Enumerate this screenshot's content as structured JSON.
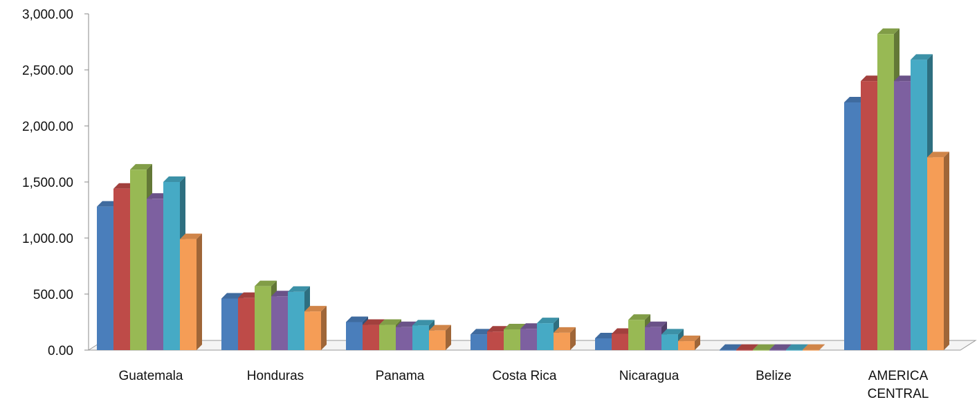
{
  "chart_data": {
    "type": "bar",
    "title": "",
    "xlabel": "",
    "ylabel": "",
    "ylim": [
      0,
      3000
    ],
    "y_ticks": [
      "0.00",
      "500.00",
      "1,000.00",
      "1,500.00",
      "2,000.00",
      "2,500.00",
      "3,000.00"
    ],
    "y_tick_values": [
      0,
      500,
      1000,
      1500,
      2000,
      2500,
      3000
    ],
    "categories": [
      "Guatemala",
      "Honduras",
      "Panama",
      "Costa Rica",
      "Nicaragua",
      "Belize",
      "AMERICA CENTRAL"
    ],
    "grid": false,
    "legend": "none",
    "style": "3d-clustered-column",
    "series": [
      {
        "color": "#4a7ebb",
        "values": [
          1280,
          460,
          250,
          140,
          105,
          2,
          2210
        ]
      },
      {
        "color": "#be4b48",
        "values": [
          1440,
          465,
          225,
          165,
          145,
          2,
          2400
        ]
      },
      {
        "color": "#98b954",
        "values": [
          1610,
          570,
          225,
          185,
          270,
          2,
          2820
        ]
      },
      {
        "color": "#7d60a0",
        "values": [
          1350,
          480,
          205,
          190,
          205,
          2,
          2400
        ]
      },
      {
        "color": "#46aac5",
        "values": [
          1500,
          520,
          220,
          240,
          140,
          2,
          2590
        ]
      },
      {
        "color": "#f59d56",
        "values": [
          990,
          345,
          175,
          155,
          80,
          2,
          1720
        ]
      }
    ]
  }
}
